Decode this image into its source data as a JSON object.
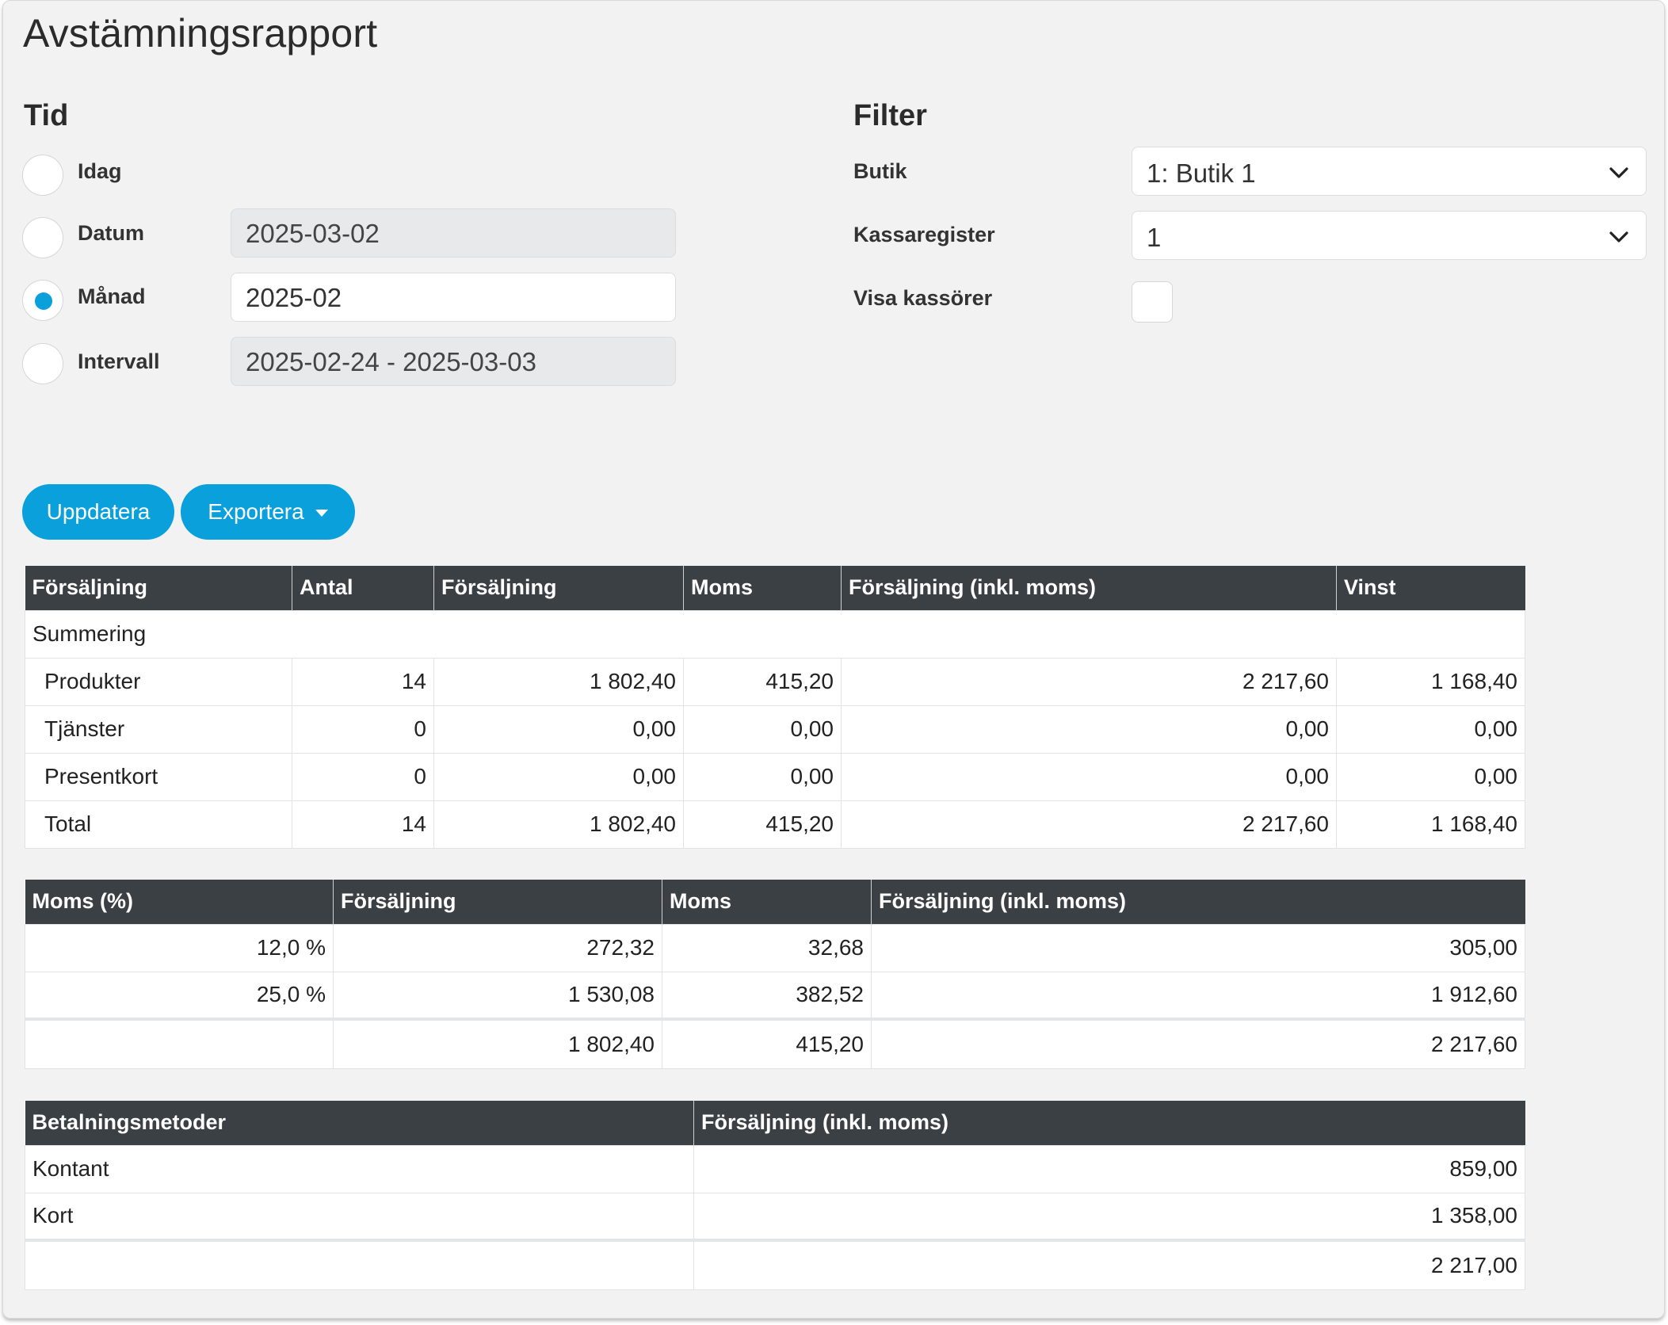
{
  "title": "Avstämningsrapport",
  "time": {
    "heading": "Tid",
    "options": [
      {
        "label": "Idag",
        "value": "",
        "checked": false,
        "disabled": false
      },
      {
        "label": "Datum",
        "value": "2025-03-02",
        "checked": false,
        "disabled": true
      },
      {
        "label": "Månad",
        "value": "2025-02",
        "checked": true,
        "disabled": false
      },
      {
        "label": "Intervall",
        "value": "2025-02-24 - 2025-03-03",
        "checked": false,
        "disabled": true
      }
    ]
  },
  "filter": {
    "heading": "Filter",
    "store_label": "Butik",
    "store_value": "1: Butik 1",
    "register_label": "Kassaregister",
    "register_value": "1",
    "show_cashiers_label": "Visa kassörer",
    "show_cashiers_checked": false
  },
  "actions": {
    "update_label": "Uppdatera",
    "export_label": "Exportera"
  },
  "sales_table": {
    "headers": [
      "Försäljning",
      "Antal",
      "Försäljning",
      "Moms",
      "Försäljning (inkl. moms)",
      "Vinst"
    ],
    "group_label": "Summering",
    "rows": [
      [
        "Produkter",
        "14",
        "1 802,40",
        "415,20",
        "2 217,60",
        "1 168,40"
      ],
      [
        "Tjänster",
        "0",
        "0,00",
        "0,00",
        "0,00",
        "0,00"
      ],
      [
        "Presentkort",
        "0",
        "0,00",
        "0,00",
        "0,00",
        "0,00"
      ],
      [
        "Total",
        "14",
        "1 802,40",
        "415,20",
        "2 217,60",
        "1 168,40"
      ]
    ]
  },
  "vat_table": {
    "headers": [
      "Moms (%)",
      "Försäljning",
      "Moms",
      "Försäljning (inkl. moms)"
    ],
    "rows": [
      [
        "12,0 %",
        "272,32",
        "32,68",
        "305,00"
      ],
      [
        "25,0 %",
        "1 530,08",
        "382,52",
        "1 912,60"
      ]
    ],
    "total": [
      "",
      "1 802,40",
      "415,20",
      "2 217,60"
    ]
  },
  "payment_table": {
    "headers": [
      "Betalningsmetoder",
      "Försäljning (inkl. moms)"
    ],
    "rows": [
      [
        "Kontant",
        "859,00"
      ],
      [
        "Kort",
        "1 358,00"
      ]
    ],
    "total": [
      "",
      "2 217,00"
    ]
  },
  "colors": {
    "accent": "#0aa0dc",
    "table_header": "#3b4045",
    "panel_bg": "#f2f2f2"
  }
}
